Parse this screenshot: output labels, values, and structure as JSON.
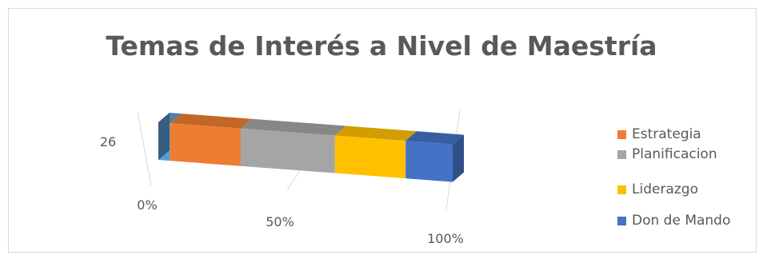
{
  "chart_data": {
    "type": "bar",
    "orientation": "horizontal",
    "stacking": "percent",
    "style": "3d",
    "title": "Temas de Interés a Nivel de Maestría",
    "categories": [
      "26"
    ],
    "x_ticks": [
      "0%",
      "50%",
      "100%"
    ],
    "xlim": [
      0,
      100
    ],
    "grid": true,
    "legend_position": "right",
    "series": [
      {
        "value": 4,
        "color": "#5b9bd5"
      },
      {
        "name": "Estrategia",
        "value": 24,
        "color": "#ed7d31"
      },
      {
        "name": "Planificacion",
        "value": 32,
        "color": "#a5a5a5"
      },
      {
        "name": "Liderazgo",
        "value": 24,
        "color": "#ffc000"
      },
      {
        "name": "Don de Mando",
        "value": 16,
        "color": "#4472c4"
      }
    ]
  }
}
